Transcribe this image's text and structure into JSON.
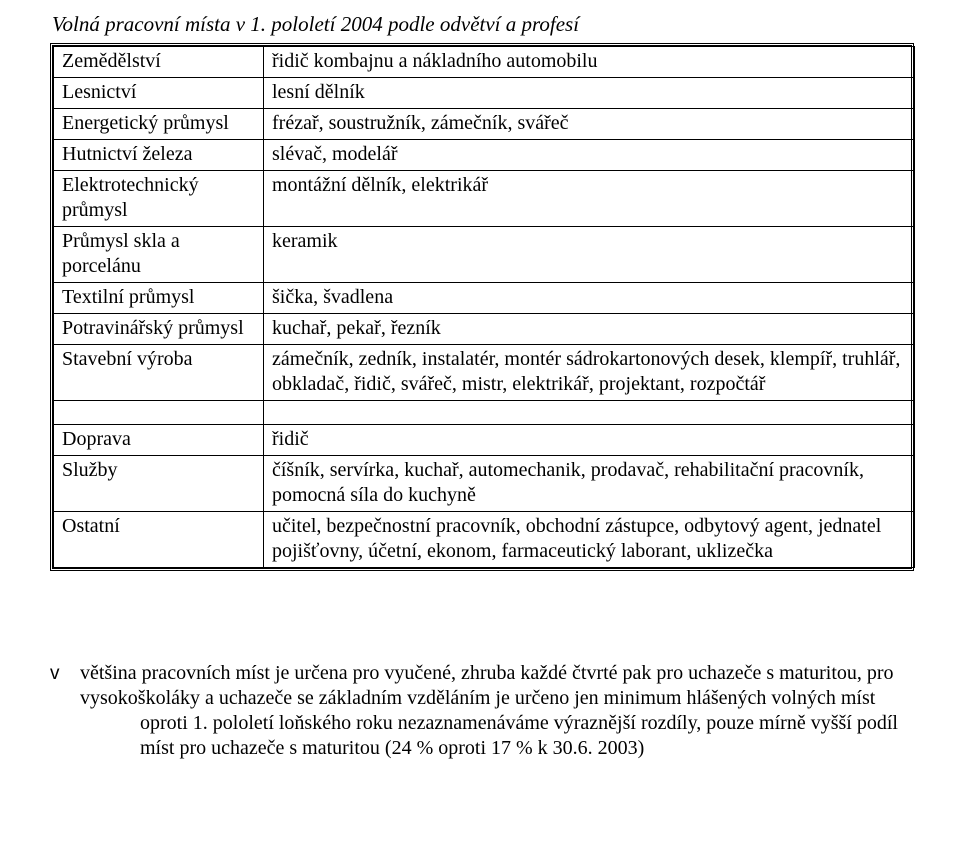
{
  "title": "Volná pracovní místa v 1. pololetí 2004 podle odvětví a profesí",
  "rows1": [
    {
      "left": "Zemědělství",
      "right": "řidič kombajnu a nákladního automobilu"
    },
    {
      "left": "Lesnictví",
      "right": "lesní dělník"
    },
    {
      "left": "Energetický průmysl",
      "right": "frézař, soustružník, zámečník, svářeč"
    },
    {
      "left": "Hutnictví železa",
      "right": "slévač, modelář"
    },
    {
      "left": "Elektrotechnický průmysl",
      "right": "montážní dělník, elektrikář"
    },
    {
      "left": "Průmysl skla a porcelánu",
      "right": "keramik"
    },
    {
      "left": "Textilní průmysl",
      "right": "šička, švadlena"
    },
    {
      "left": "Potravinářský průmysl",
      "right": "kuchař, pekař, řezník"
    },
    {
      "left": "Stavební výroba",
      "right": "zámečník, zedník, instalatér, montér sádrokartonových desek, klempíř, truhlář, obkladač, řidič, svářeč, mistr, elektrikář, projektant, rozpočtář"
    }
  ],
  "rows2": [
    {
      "left": "Doprava",
      "right": "řidič"
    },
    {
      "left": "Služby",
      "right": "číšník, servírka, kuchař, automechanik, prodavač, rehabilitační pracovník, pomocná síla do kuchyně"
    },
    {
      "left": "Ostatní",
      "right": "učitel, bezpečnostní pracovník, obchodní zástupce, odbytový agent, jednatel pojišťovny, účetní, ekonom, farmaceutický laborant, uklizečka"
    }
  ],
  "bullet1": "většina pracovních míst je určena pro vyučené, zhruba každé čtvrté pak pro uchazeče s maturitou, pro vysokoškoláky a uchazeče se základním vzděláním je určeno jen minimum hlášených volných míst",
  "bullet1_sub": "oproti 1. pololetí loňského roku nezaznamenáváme výraznější rozdíly, pouze mírně vyšší podíl míst pro uchazeče s maturitou (24 % oproti 17 % k 30.6. 2003)",
  "bullet_mark": "v"
}
